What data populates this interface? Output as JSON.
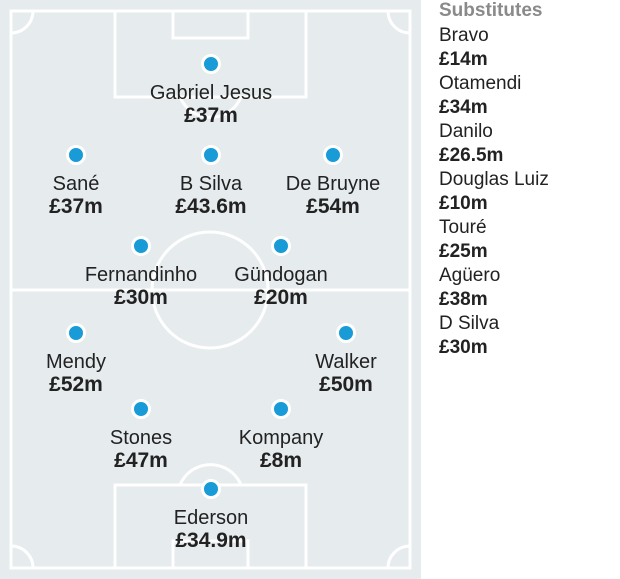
{
  "subs_title": "Substitutes",
  "colors": {
    "pitch": "#E6EBEE",
    "line": "#FFFFFF",
    "player_dot": "#199BD8"
  },
  "players": [
    {
      "id": "gabriel-jesus",
      "name": "Gabriel Jesus",
      "fee": "£37m"
    },
    {
      "id": "sane",
      "name": "Sané",
      "fee": "£37m"
    },
    {
      "id": "b-silva",
      "name": "B Silva",
      "fee": "£43.6m"
    },
    {
      "id": "de-bruyne",
      "name": "De Bruyne",
      "fee": "£54m"
    },
    {
      "id": "fernandinho",
      "name": "Fernandinho",
      "fee": "£30m"
    },
    {
      "id": "gundogan",
      "name": "Gündogan",
      "fee": "£20m"
    },
    {
      "id": "mendy",
      "name": "Mendy",
      "fee": "£52m"
    },
    {
      "id": "walker",
      "name": "Walker",
      "fee": "£50m"
    },
    {
      "id": "stones",
      "name": "Stones",
      "fee": "£47m"
    },
    {
      "id": "kompany",
      "name": "Kompany",
      "fee": "£8m"
    },
    {
      "id": "ederson",
      "name": "Ederson",
      "fee": "£34.9m"
    }
  ],
  "substitutes": [
    {
      "name": "Bravo",
      "fee": "£14m"
    },
    {
      "name": "Otamendi",
      "fee": "£34m"
    },
    {
      "name": "Danilo",
      "fee": "£26.5m"
    },
    {
      "name": "Douglas Luiz",
      "fee": "£10m"
    },
    {
      "name": "Touré",
      "fee": "£25m"
    },
    {
      "name": "Agüero",
      "fee": "£38m"
    },
    {
      "name": "D Silva",
      "fee": "£30m"
    }
  ]
}
